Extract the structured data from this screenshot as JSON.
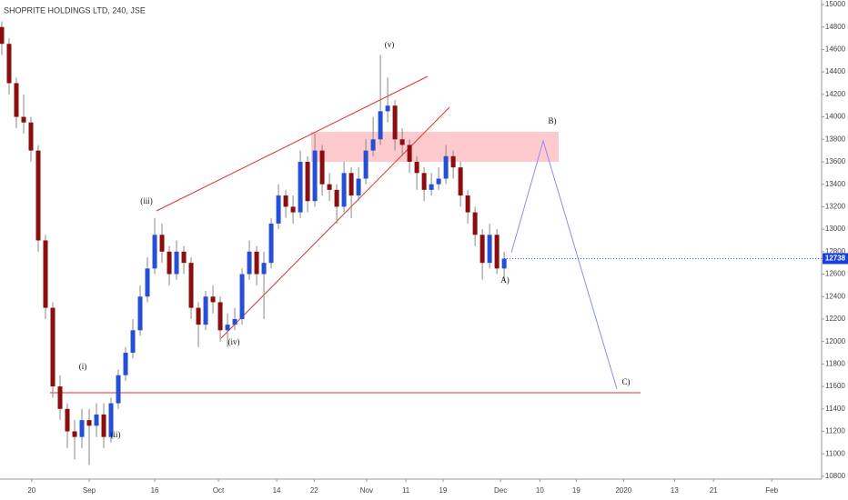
{
  "chart_data": {
    "type": "candlestick",
    "title": "SHOPRITE HOLDINGS LTD, 240, JSE",
    "up_color": "#2450d8",
    "down_color": "#8b0d0d",
    "series": {
      "open": [
        14800,
        14650,
        14300,
        14000,
        13950,
        13700,
        12900,
        12300,
        11600,
        11400,
        11200,
        11150,
        11300,
        11250,
        11350,
        11150,
        11450,
        11700,
        11900,
        12100,
        12400,
        12650,
        12950,
        12800,
        12600,
        12800,
        12700,
        12300,
        12150,
        12400,
        12350,
        12100,
        12150,
        12200,
        12600,
        12800,
        12600,
        12700,
        13050,
        13300,
        13200,
        13150,
        13600,
        13250,
        13700,
        13400,
        13350,
        13200,
        13500,
        13300,
        13450,
        13700,
        13800,
        14050,
        14100,
        13800,
        13750,
        13600,
        13500,
        13350,
        13400,
        13450,
        13650,
        13550,
        13300,
        13150,
        12950,
        12700,
        12950,
        12650
      ],
      "high": [
        14850,
        14700,
        14350,
        14200,
        14000,
        13750,
        12950,
        12350,
        11700,
        11450,
        11300,
        11400,
        11400,
        11450,
        11450,
        11500,
        11750,
        11950,
        12200,
        12500,
        12750,
        13100,
        13050,
        12850,
        12900,
        12850,
        12750,
        12350,
        12450,
        12500,
        12400,
        12250,
        12300,
        12650,
        12900,
        12850,
        12800,
        13100,
        13400,
        13350,
        13300,
        13700,
        13650,
        13850,
        13750,
        13500,
        13400,
        13600,
        13550,
        13550,
        13800,
        14000,
        14550,
        14350,
        14150,
        13900,
        13800,
        13650,
        13550,
        13500,
        13550,
        13750,
        13700,
        13600,
        13350,
        13200,
        13000,
        13050,
        13000,
        12800
      ],
      "low": [
        14550,
        14200,
        13900,
        13850,
        13600,
        12800,
        12200,
        11500,
        11300,
        11050,
        10950,
        11050,
        10900,
        11150,
        11050,
        11100,
        11400,
        11650,
        11850,
        12050,
        12350,
        12600,
        12700,
        12500,
        12550,
        12600,
        12200,
        11950,
        12100,
        12250,
        12000,
        11950,
        12100,
        12150,
        12550,
        12500,
        12200,
        12650,
        13000,
        13100,
        13050,
        13100,
        13150,
        13200,
        13300,
        13250,
        13050,
        13150,
        13100,
        13250,
        13400,
        13650,
        13750,
        13950,
        13700,
        13650,
        13500,
        13350,
        13250,
        13300,
        13350,
        13400,
        13450,
        13200,
        13050,
        12850,
        12550,
        12650,
        12600,
        12550
      ],
      "close": [
        14650,
        14300,
        14000,
        13950,
        13700,
        12900,
        12300,
        11600,
        11400,
        11200,
        11150,
        11300,
        11250,
        11350,
        11150,
        11450,
        11700,
        11900,
        12100,
        12400,
        12650,
        12950,
        12800,
        12600,
        12800,
        12700,
        12300,
        12150,
        12400,
        12350,
        12100,
        12150,
        12200,
        12600,
        12800,
        12600,
        12700,
        13050,
        13300,
        13200,
        13150,
        13600,
        13250,
        13700,
        13400,
        13350,
        13200,
        13500,
        13300,
        13450,
        13700,
        13800,
        14050,
        14100,
        13800,
        13750,
        13600,
        13500,
        13350,
        13400,
        13450,
        13650,
        13550,
        13300,
        13150,
        12950,
        12700,
        12950,
        12650,
        12738
      ]
    },
    "ylim": [
      10775,
      15000
    ],
    "yticks": [
      10800,
      11000,
      11200,
      11400,
      11600,
      11800,
      12000,
      12200,
      12400,
      12600,
      12800,
      13000,
      13200,
      13400,
      13600,
      13800,
      14000,
      14200,
      14400,
      14600,
      14800,
      15000
    ],
    "xlim": [
      -0.25,
      112.6
    ],
    "xticks": [
      {
        "value": 4.1,
        "label": "20"
      },
      {
        "value": 12,
        "label": "Sep"
      },
      {
        "value": 21,
        "label": "16"
      },
      {
        "value": 29.75,
        "label": "Oct"
      },
      {
        "value": 37.75,
        "label": "14"
      },
      {
        "value": 42.9,
        "label": "22"
      },
      {
        "value": 50.1,
        "label": "Nov"
      },
      {
        "value": 55.5,
        "label": "11"
      },
      {
        "value": 60.6,
        "label": "19"
      },
      {
        "value": 68.5,
        "label": "Dec"
      },
      {
        "value": 73.9,
        "label": "10"
      },
      {
        "value": 78.9,
        "label": "19"
      },
      {
        "value": 85.4,
        "label": "2020"
      },
      {
        "value": 92.4,
        "label": "13"
      },
      {
        "value": 97.75,
        "label": "21"
      },
      {
        "value": 105.75,
        "label": "Feb"
      }
    ],
    "annotations": [
      "(v)",
      "(iii)",
      "(iv)",
      "(i)",
      "(ii)",
      "A)",
      "B)",
      "C)"
    ]
  }
}
